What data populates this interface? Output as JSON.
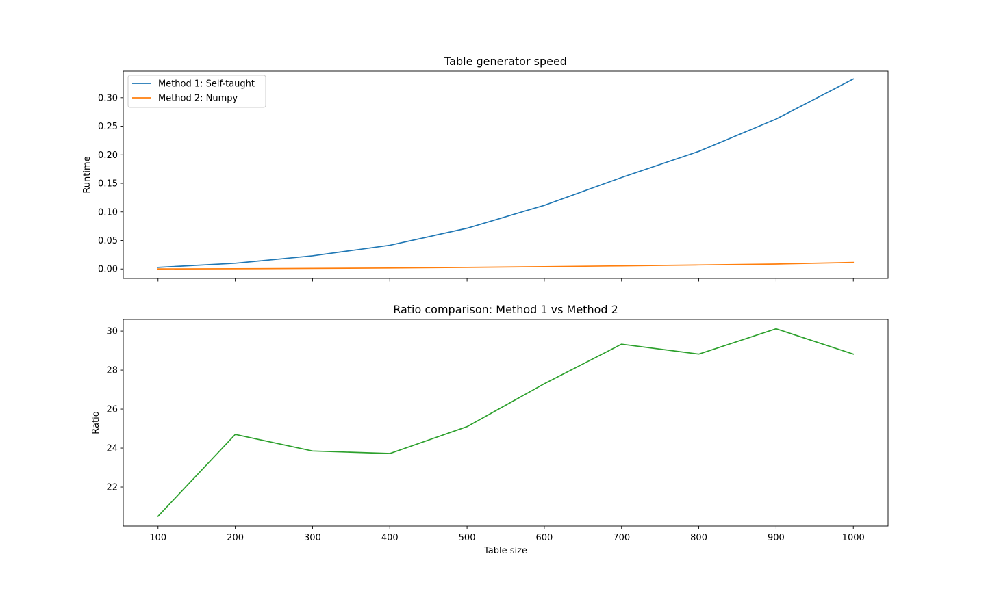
{
  "chart_data": [
    {
      "type": "line",
      "title": "Table generator speed",
      "xlabel": "",
      "ylabel": "Runtime",
      "x": [
        100,
        200,
        300,
        400,
        500,
        600,
        700,
        800,
        900,
        1000
      ],
      "xlim": [
        55,
        1045
      ],
      "ylim": [
        -0.0165,
        0.3465
      ],
      "yticks": [
        "0.00",
        "0.05",
        "0.10",
        "0.15",
        "0.20",
        "0.25",
        "0.30"
      ],
      "ytick_values": [
        0,
        0.05,
        0.1,
        0.15,
        0.2,
        0.25,
        0.3
      ],
      "show_xtick_labels": false,
      "grid": false,
      "legend_position": "upper-left",
      "series": [
        {
          "name": "Method 1: Self-taught",
          "color": "#1f77b4",
          "values": [
            0.0028,
            0.0101,
            0.0231,
            0.0415,
            0.0714,
            0.1115,
            0.1602,
            0.206,
            0.2625,
            0.3327
          ]
        },
        {
          "name": "Method 2: Numpy",
          "color": "#ff7f0e",
          "values": [
            0.0001,
            0.0004,
            0.001,
            0.0017,
            0.0028,
            0.0041,
            0.0055,
            0.0071,
            0.0087,
            0.0115
          ]
        }
      ]
    },
    {
      "type": "line",
      "title": "Ratio comparison: Method 1 vs Method 2",
      "xlabel": "Table size",
      "ylabel": "Ratio",
      "x": [
        100,
        200,
        300,
        400,
        500,
        600,
        700,
        800,
        900,
        1000
      ],
      "xlim": [
        55,
        1045
      ],
      "xticks": [
        "100",
        "200",
        "300",
        "400",
        "500",
        "600",
        "700",
        "800",
        "900",
        "1000"
      ],
      "ylim": [
        20.0,
        30.6
      ],
      "yticks": [
        "22",
        "24",
        "26",
        "28",
        "30"
      ],
      "ytick_values": [
        22,
        24,
        26,
        28,
        30
      ],
      "show_xtick_labels": true,
      "grid": false,
      "series": [
        {
          "color": "#2ca02c",
          "values": [
            20.5,
            24.7,
            23.85,
            23.72,
            25.1,
            27.3,
            29.33,
            28.82,
            30.12,
            28.82
          ]
        }
      ]
    }
  ]
}
